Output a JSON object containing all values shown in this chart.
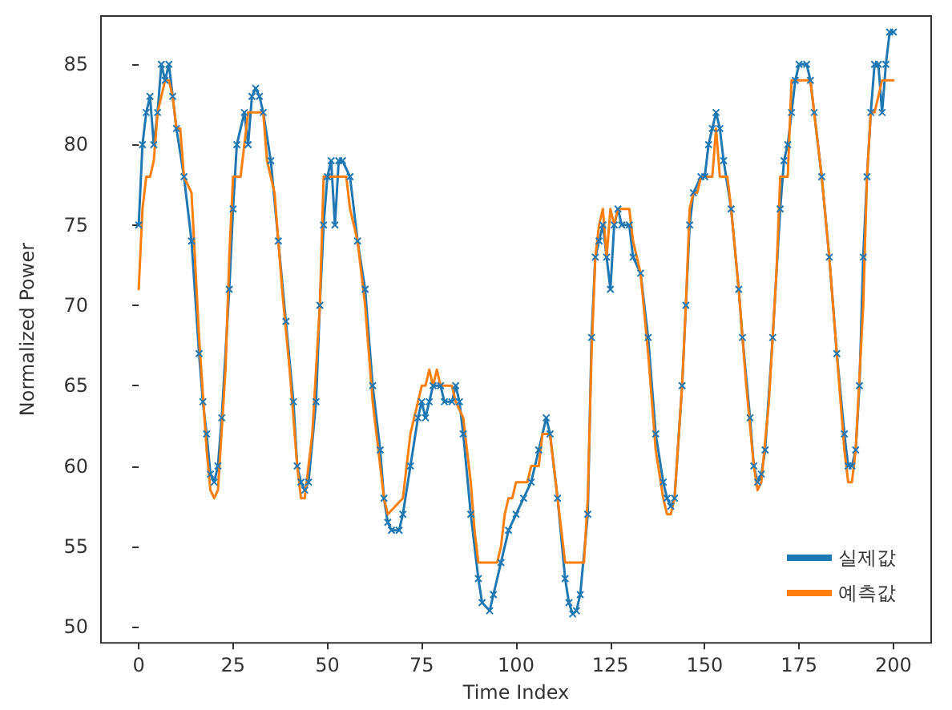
{
  "chart_data": {
    "type": "line",
    "xlabel": "Time Index",
    "ylabel": "Normalized Power",
    "xlim": [
      -10,
      210
    ],
    "xticks": [
      0,
      25,
      50,
      75,
      100,
      125,
      150,
      175,
      200
    ],
    "ylim": [
      49,
      88
    ],
    "yticks": [
      50,
      55,
      60,
      65,
      70,
      75,
      80,
      85
    ],
    "grid": false,
    "legend": "bottom right",
    "line_style": "solid",
    "series": [
      {
        "name": "실제값",
        "color": "#1f77b4",
        "marker": "cross",
        "x": [
          0,
          1,
          2,
          3,
          4,
          5,
          6,
          7,
          8,
          9,
          10,
          12,
          14,
          16,
          17,
          18,
          19,
          20,
          21,
          22,
          24,
          25,
          26,
          28,
          29,
          30,
          31,
          32,
          33,
          35,
          37,
          39,
          41,
          42,
          43,
          44,
          45,
          47,
          48,
          49,
          50,
          51,
          52,
          53,
          54,
          56,
          58,
          60,
          62,
          64,
          65,
          66,
          67,
          69,
          70,
          72,
          74,
          75,
          76,
          77,
          78,
          80,
          81,
          83,
          84,
          85,
          86,
          88,
          90,
          91,
          93,
          94,
          96,
          98,
          100,
          102,
          104,
          106,
          108,
          109,
          111,
          113,
          114,
          115,
          116,
          117,
          119,
          120,
          121,
          122,
          123,
          124,
          125,
          126,
          127,
          128,
          130,
          131,
          133,
          135,
          137,
          139,
          140,
          141,
          142,
          144,
          145,
          146,
          147,
          149,
          150,
          151,
          152,
          153,
          154,
          155,
          157,
          159,
          160,
          162,
          163,
          164,
          165,
          166,
          168,
          170,
          171,
          172,
          173,
          174,
          175,
          177,
          178,
          179,
          181,
          183,
          185,
          187,
          188,
          189,
          190,
          191,
          192,
          193,
          194,
          195,
          196,
          197,
          198,
          199,
          200
        ],
        "values": [
          75,
          80,
          82,
          83,
          80,
          82,
          85,
          84,
          85,
          83,
          81,
          78,
          74,
          67,
          64,
          62,
          59.5,
          59,
          60,
          63,
          71,
          76,
          80,
          82,
          80,
          83,
          83.5,
          83,
          82,
          79,
          74,
          69,
          64,
          60,
          59,
          58.5,
          59,
          64,
          70,
          75,
          78,
          79,
          75,
          79,
          79,
          78,
          74,
          71,
          65,
          61,
          58,
          56.5,
          56,
          56,
          57,
          60,
          63,
          64,
          63,
          64,
          65,
          65,
          64,
          64,
          65,
          64,
          62,
          57,
          53,
          51.5,
          51,
          52,
          54,
          56,
          57,
          58,
          59,
          61,
          63,
          62,
          58,
          53,
          51.5,
          50.8,
          51,
          52,
          57,
          68,
          73,
          74,
          75,
          73,
          71,
          75,
          76,
          75,
          75,
          73,
          72,
          68,
          62,
          59,
          58,
          57.5,
          58,
          65,
          70,
          75,
          77,
          78,
          78,
          80,
          81,
          82,
          81,
          79,
          76,
          71,
          68,
          63,
          60,
          59,
          59.5,
          61,
          68,
          76,
          79,
          80,
          82,
          84,
          85,
          85,
          84,
          82,
          78,
          73,
          67,
          62,
          60,
          60,
          61,
          65,
          73,
          78,
          82,
          85,
          85,
          82,
          85,
          87,
          87
        ]
      },
      {
        "name": "예측값",
        "color": "#ff7f0e",
        "x": [
          0,
          1,
          2,
          3,
          4,
          5,
          6,
          7,
          8,
          9,
          10,
          11,
          12,
          14,
          16,
          18,
          19,
          20,
          21,
          23,
          24,
          25,
          27,
          28,
          29,
          33,
          34,
          36,
          38,
          40,
          42,
          43,
          44,
          46,
          48,
          49,
          55,
          56,
          58,
          60,
          62,
          64,
          65,
          66,
          68,
          70,
          72,
          74,
          75,
          76,
          77,
          78,
          79,
          80,
          83,
          84,
          86,
          88,
          89,
          90,
          95,
          96,
          97,
          98,
          99,
          100,
          103,
          104,
          106,
          107,
          109,
          110,
          112,
          113,
          118,
          119,
          120,
          121,
          122,
          123,
          124,
          125,
          126,
          127,
          130,
          131,
          133,
          135,
          137,
          139,
          140,
          141,
          142,
          144,
          145,
          146,
          147,
          148,
          149,
          152,
          153,
          154,
          156,
          157,
          159,
          161,
          163,
          164,
          165,
          167,
          169,
          170,
          172,
          173,
          178,
          179,
          181,
          183,
          185,
          187,
          188,
          189,
          190,
          192,
          193,
          194,
          195,
          196,
          197,
          200
        ],
        "values": [
          71,
          76,
          78,
          78,
          79,
          82,
          83,
          84,
          84,
          83,
          81,
          81,
          78,
          77,
          68,
          61,
          58.5,
          58,
          58.5,
          66,
          73,
          78,
          78,
          80,
          82,
          82,
          79,
          77,
          71,
          66,
          60,
          58,
          58,
          62,
          70,
          78,
          78,
          76,
          74,
          70,
          64,
          60,
          58,
          57,
          57.5,
          58,
          62,
          64,
          65,
          65,
          66,
          65,
          66,
          65,
          65,
          64,
          63,
          59,
          56,
          54,
          54,
          55,
          57,
          58,
          58,
          59,
          59,
          60,
          60,
          62,
          62,
          60,
          56,
          54,
          54,
          58,
          67,
          73,
          75,
          76,
          73,
          76,
          75,
          76,
          76,
          74,
          72,
          67,
          61,
          58,
          57,
          57,
          58,
          65,
          70,
          76,
          77,
          77,
          78,
          78,
          81,
          78,
          78,
          76,
          71,
          65,
          60,
          58.5,
          59,
          64,
          72,
          78,
          78,
          84,
          84,
          82,
          78,
          73,
          67,
          61,
          59,
          59,
          61,
          70,
          78,
          82,
          82,
          83,
          84,
          84
        ]
      }
    ]
  }
}
